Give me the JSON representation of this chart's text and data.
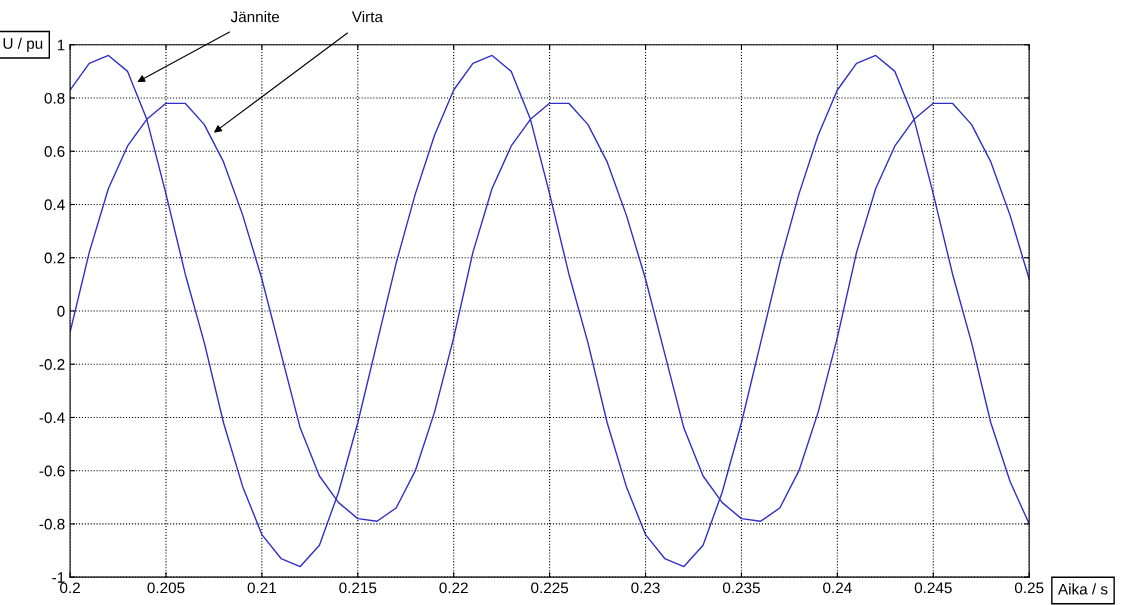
{
  "chart_data": {
    "type": "line",
    "xlabel": "Aika / s",
    "ylabel": "U / pu",
    "x": [
      0.2,
      0.201,
      0.202,
      0.203,
      0.204,
      0.205,
      0.206,
      0.207,
      0.208,
      0.209,
      0.21,
      0.211,
      0.212,
      0.213,
      0.214,
      0.215,
      0.216,
      0.217,
      0.218,
      0.219,
      0.22,
      0.221,
      0.222,
      0.223,
      0.224,
      0.225,
      0.226,
      0.227,
      0.228,
      0.229,
      0.23,
      0.231,
      0.232,
      0.233,
      0.234,
      0.235,
      0.236,
      0.237,
      0.238,
      0.239,
      0.24,
      0.241,
      0.242,
      0.243,
      0.244,
      0.245,
      0.246,
      0.247,
      0.248,
      0.249,
      0.25
    ],
    "series": [
      {
        "color": "#2f2fc8",
        "values": [
          0.83,
          0.93,
          0.96,
          0.9,
          0.72,
          0.44,
          0.14,
          -0.12,
          -0.42,
          -0.66,
          -0.84,
          -0.93,
          -0.96,
          -0.88,
          -0.68,
          -0.42,
          -0.12,
          0.18,
          0.44,
          0.66,
          0.83,
          0.93,
          0.96,
          0.9,
          0.72,
          0.44,
          0.14,
          -0.12,
          -0.42,
          -0.66,
          -0.84,
          -0.93,
          -0.96,
          -0.88,
          -0.68,
          -0.42,
          -0.12,
          0.18,
          0.44,
          0.66,
          0.83,
          0.93,
          0.96,
          0.9,
          0.72,
          0.44,
          0.14,
          -0.12,
          -0.42,
          -0.64,
          -0.8
        ]
      },
      {
        "color": "#2f2fc8",
        "values": [
          -0.08,
          0.22,
          0.46,
          0.62,
          0.72,
          0.78,
          0.78,
          0.7,
          0.56,
          0.36,
          0.12,
          -0.16,
          -0.44,
          -0.62,
          -0.72,
          -0.78,
          -0.79,
          -0.74,
          -0.6,
          -0.38,
          -0.1,
          0.22,
          0.46,
          0.62,
          0.72,
          0.78,
          0.78,
          0.7,
          0.56,
          0.36,
          0.12,
          -0.16,
          -0.44,
          -0.62,
          -0.72,
          -0.78,
          -0.79,
          -0.74,
          -0.6,
          -0.38,
          -0.1,
          0.22,
          0.46,
          0.62,
          0.72,
          0.78,
          0.78,
          0.7,
          0.56,
          0.36,
          0.12
        ]
      }
    ],
    "annotations": [
      {
        "text": "Jännite",
        "x": 0.2035,
        "y": 0.86
      },
      {
        "text": "Virta",
        "x": 0.2075,
        "y": 0.67
      }
    ],
    "xlim": [
      0.2,
      0.25
    ],
    "xticks": [
      0.2,
      0.205,
      0.21,
      0.215,
      0.22,
      0.225,
      0.23,
      0.235,
      0.24,
      0.245,
      0.25
    ],
    "ylim": [
      -1,
      1
    ],
    "yticks": [
      -1,
      -0.8,
      -0.6,
      -0.4,
      -0.2,
      0,
      0.2,
      0.4,
      0.6,
      0.8,
      1
    ],
    "grid": true,
    "legend": false,
    "marker": "none",
    "line_style": "solid"
  }
}
